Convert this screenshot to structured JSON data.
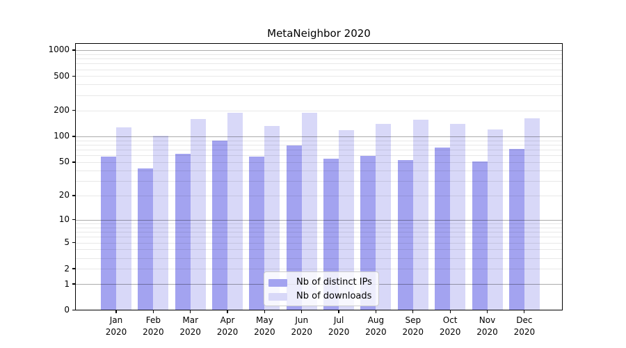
{
  "title": "MetaNeighbor 2020",
  "colors": {
    "background": "#ffffff",
    "bar_distinct_ips": "#a3a3f0",
    "bar_downloads": "#d8d8f8",
    "grid_major": "#b0b0b0",
    "grid_minor": "#e9e9e9",
    "spine": "#000000",
    "text": "#000000",
    "legend_border": "#cccccc"
  },
  "legend": {
    "position": "lower center",
    "items": [
      {
        "label": "Nb of distinct IPs",
        "color": "#a3a3f0"
      },
      {
        "label": "Nb of downloads",
        "color": "#d8d8f8"
      }
    ]
  },
  "chart_data": {
    "type": "bar",
    "title": "MetaNeighbor 2020",
    "categories": [
      "Jan 2020",
      "Feb 2020",
      "Mar 2020",
      "Apr 2020",
      "May 2020",
      "Jun 2020",
      "Jul 2020",
      "Aug 2020",
      "Sep 2020",
      "Oct 2020",
      "Nov 2020",
      "Dec 2020"
    ],
    "series": [
      {
        "name": "Nb of distinct IPs",
        "color": "#a3a3f0",
        "values": [
          58,
          42,
          62,
          89,
          58,
          78,
          55,
          59,
          53,
          74,
          51,
          71
        ]
      },
      {
        "name": "Nb of downloads",
        "color": "#d8d8f8",
        "values": [
          128,
          101,
          158,
          187,
          131,
          187,
          119,
          141,
          157,
          141,
          121,
          162
        ]
      }
    ],
    "xlabel": "",
    "ylabel": "",
    "yscale": "log1p",
    "yticks": [
      0,
      1,
      2,
      5,
      10,
      20,
      50,
      100,
      200,
      500,
      1000
    ],
    "ylim": [
      0,
      1200
    ],
    "grid": "on",
    "grid_major_at": [
      1,
      10,
      100,
      1000
    ],
    "legend_position": "lower center"
  }
}
